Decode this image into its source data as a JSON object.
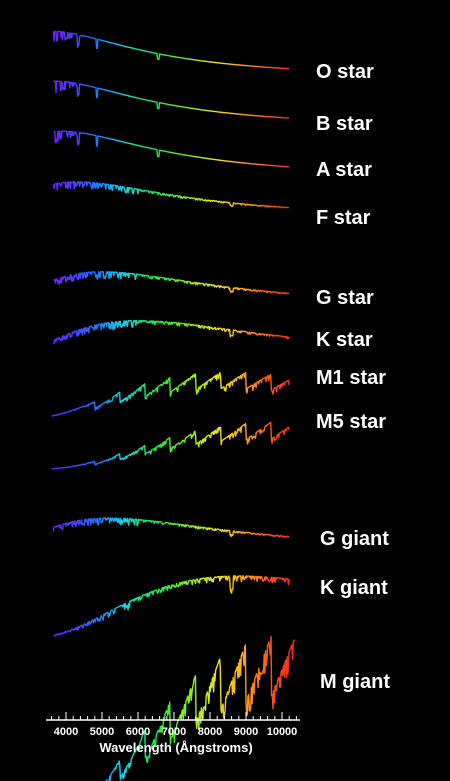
{
  "chart_data": {
    "type": "line",
    "xlabel": "Wavelength (Ångstroms)",
    "ylabel": "",
    "xlim": [
      3500,
      10500
    ],
    "x_ticks": [
      4000,
      5000,
      6000,
      7000,
      8000,
      9000,
      10000
    ],
    "grid": false,
    "background": "#000000",
    "series": [
      {
        "name": "O star",
        "shape": "hot",
        "peak_wavelength": 3600
      },
      {
        "name": "B star",
        "shape": "hot",
        "peak_wavelength": 3700
      },
      {
        "name": "A star",
        "shape": "hot",
        "peak_wavelength": 3900
      },
      {
        "name": "F star",
        "shape": "warm",
        "peak_wavelength": 4300
      },
      {
        "name": "G star",
        "shape": "warm",
        "peak_wavelength": 5000
      },
      {
        "name": "K star",
        "shape": "warm",
        "peak_wavelength": 6000
      },
      {
        "name": "M1 star",
        "shape": "cool",
        "peak_wavelength": 8500
      },
      {
        "name": "M5 star",
        "shape": "cool",
        "peak_wavelength": 10000
      },
      {
        "name": "G giant",
        "shape": "warm",
        "peak_wavelength": 5200
      },
      {
        "name": "K giant",
        "shape": "warm",
        "peak_wavelength": 8800
      },
      {
        "name": "M giant",
        "shape": "cool",
        "peak_wavelength": 10400
      }
    ]
  }
}
